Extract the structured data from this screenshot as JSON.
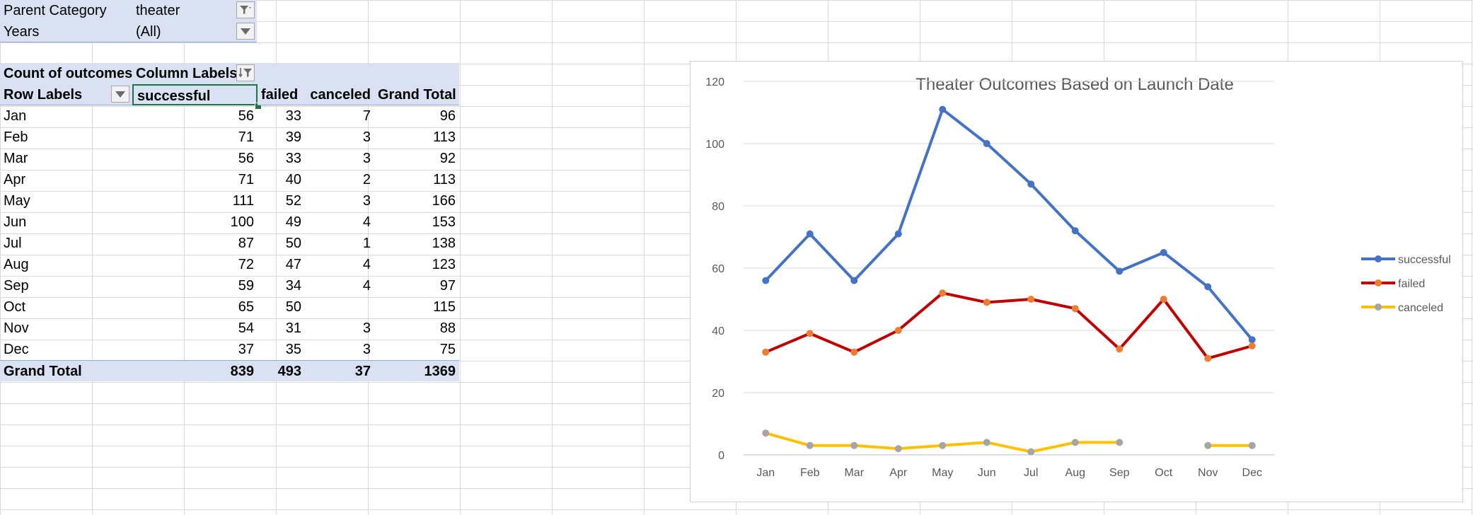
{
  "pivot": {
    "filter": [
      {
        "label": "Parent Category",
        "value": "theater"
      },
      {
        "label": "Years",
        "value": "(All)"
      }
    ],
    "header1": {
      "corner": "Count of outcomes",
      "col_labels": "Column Labels"
    },
    "header2": {
      "row_labels": "Row Labels",
      "cols": [
        "successful",
        "failed",
        "canceled",
        "Grand Total"
      ]
    },
    "rows": [
      {
        "label": "Jan",
        "vals": [
          "56",
          "33",
          "7",
          "96"
        ]
      },
      {
        "label": "Feb",
        "vals": [
          "71",
          "39",
          "3",
          "113"
        ]
      },
      {
        "label": "Mar",
        "vals": [
          "56",
          "33",
          "3",
          "92"
        ]
      },
      {
        "label": "Apr",
        "vals": [
          "71",
          "40",
          "2",
          "113"
        ]
      },
      {
        "label": "May",
        "vals": [
          "111",
          "52",
          "3",
          "166"
        ]
      },
      {
        "label": "Jun",
        "vals": [
          "100",
          "49",
          "4",
          "153"
        ]
      },
      {
        "label": "Jul",
        "vals": [
          "87",
          "50",
          "1",
          "138"
        ]
      },
      {
        "label": "Aug",
        "vals": [
          "72",
          "47",
          "4",
          "123"
        ]
      },
      {
        "label": "Sep",
        "vals": [
          "59",
          "34",
          "4",
          "97"
        ]
      },
      {
        "label": "Oct",
        "vals": [
          "65",
          "50",
          "",
          "115"
        ]
      },
      {
        "label": "Nov",
        "vals": [
          "54",
          "31",
          "3",
          "88"
        ]
      },
      {
        "label": "Dec",
        "vals": [
          "37",
          "35",
          "3",
          "75"
        ]
      }
    ],
    "total": {
      "label": "Grand Total",
      "vals": [
        "839",
        "493",
        "37",
        "1369"
      ]
    }
  },
  "icons": {
    "filter": "filter-funnel-icon",
    "sort_filter": "sort-filter-icon",
    "dropdown": "dropdown-arrow-icon"
  },
  "colors": {
    "successful": "#4472c4",
    "failed": "#c00000",
    "failed_marker": "#ed7d31",
    "canceled": "#ffc000",
    "canceled_marker": "#a5a5a5",
    "pivot_header": "#d9e1f2",
    "selection": "#217346"
  },
  "chart_data": {
    "type": "line",
    "title": "Theater Outcomes Based on Launch Date",
    "categories": [
      "Jan",
      "Feb",
      "Mar",
      "Apr",
      "May",
      "Jun",
      "Jul",
      "Aug",
      "Sep",
      "Oct",
      "Nov",
      "Dec"
    ],
    "series": [
      {
        "name": "successful",
        "values": [
          56,
          71,
          56,
          71,
          111,
          100,
          87,
          72,
          59,
          65,
          54,
          37
        ]
      },
      {
        "name": "failed",
        "values": [
          33,
          39,
          33,
          40,
          52,
          49,
          50,
          47,
          34,
          50,
          31,
          35
        ]
      },
      {
        "name": "canceled",
        "values": [
          7,
          3,
          3,
          2,
          3,
          4,
          1,
          4,
          4,
          null,
          3,
          3
        ]
      }
    ],
    "ylim": [
      0,
      120
    ],
    "yticks": [
      "0",
      "20",
      "40",
      "60",
      "80",
      "100",
      "120"
    ],
    "grid": true,
    "legend": "right"
  }
}
